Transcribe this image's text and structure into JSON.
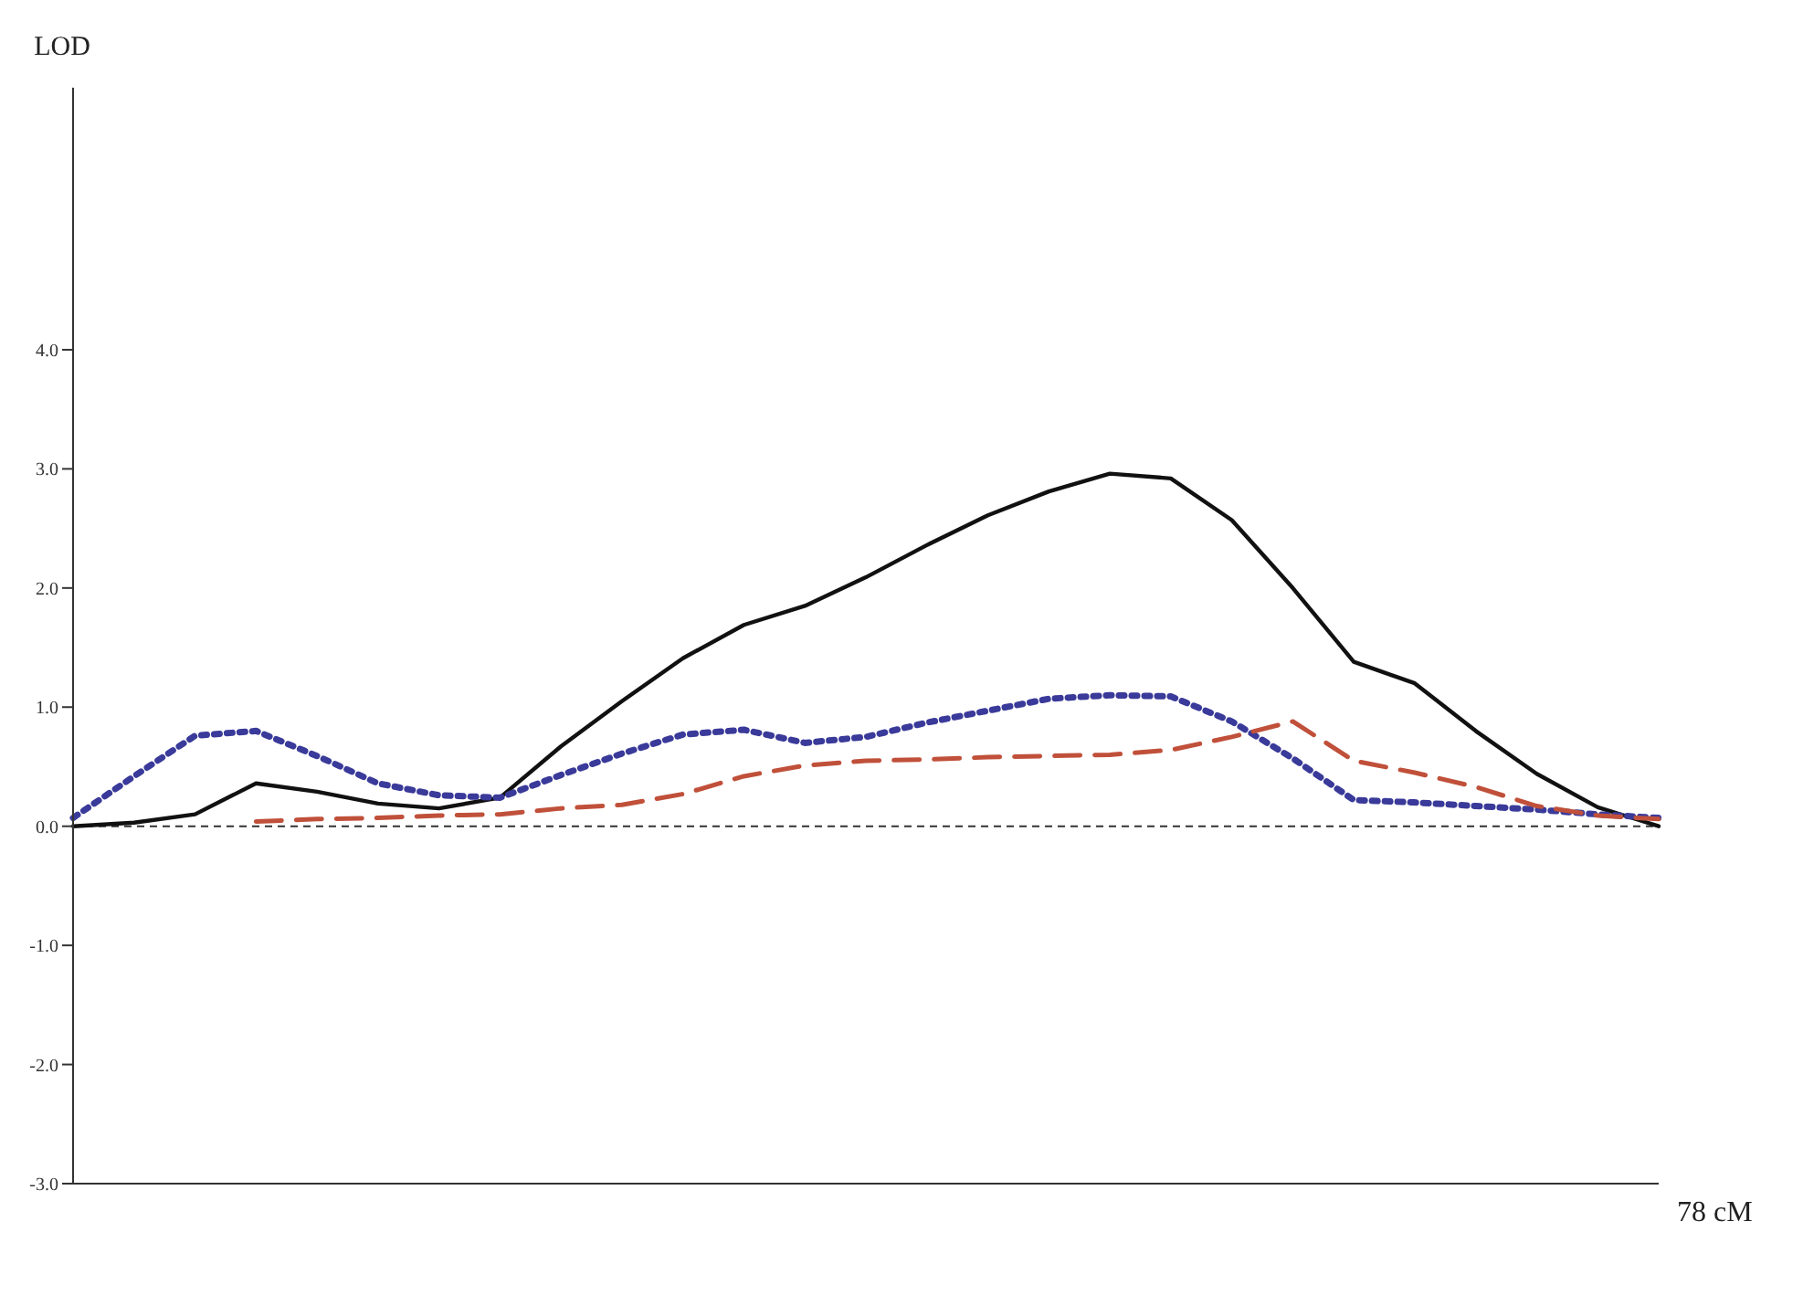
{
  "chart_data": {
    "type": "line",
    "ylabel": "LOD",
    "xlabel": "78 cM",
    "categories": [
      null,
      null,
      null,
      null,
      null,
      null,
      null,
      null,
      null,
      null,
      null,
      null,
      null,
      null,
      null,
      null,
      null,
      null,
      null,
      null,
      null,
      null,
      null,
      null,
      null,
      null,
      null
    ],
    "ylim": [
      -3,
      6.2
    ],
    "yticks": [
      {
        "value": -3,
        "label": "-3.0"
      },
      {
        "value": -2,
        "label": "-2.0"
      },
      {
        "value": -1,
        "label": "-1.0"
      },
      {
        "value": 0,
        "label": "0.0"
      },
      {
        "value": 1,
        "label": "1.0"
      },
      {
        "value": 2,
        "label": "2.0"
      },
      {
        "value": 3,
        "label": "3.0"
      },
      {
        "value": 4,
        "label": "4.0"
      }
    ],
    "tick_labels": "y",
    "grid": false,
    "legend": false,
    "ref_lines": [
      {
        "axis": "y",
        "value": 0,
        "color": "#333333",
        "line_style": "dashed"
      }
    ],
    "series": [
      {
        "color": "#111111",
        "line_style": "solid",
        "values": [
          0,
          0.03,
          0.1,
          0.36,
          0.29,
          0.19,
          0.15,
          0.24,
          0.67,
          1.05,
          1.41,
          1.69,
          1.85,
          2.09,
          2.36,
          2.61,
          2.81,
          2.96,
          2.92,
          2.57,
          2.0,
          1.38,
          1.2,
          0.8,
          0.44,
          0.16,
          0
        ]
      },
      {
        "color": "#3a3a9a",
        "line_style": "dotted",
        "values": [
          0.07,
          0.42,
          0.76,
          0.8,
          0.59,
          0.36,
          0.26,
          0.24,
          0.43,
          0.61,
          0.77,
          0.81,
          0.7,
          0.75,
          0.87,
          0.97,
          1.07,
          1.1,
          1.09,
          0.88,
          0.57,
          0.22,
          0.2,
          0.17,
          0.14,
          0.1,
          0.07
        ]
      },
      {
        "color": "#c0503a",
        "line_style": "dashed",
        "values": [
          null,
          null,
          null,
          0.04,
          0.06,
          0.07,
          0.09,
          0.1,
          0.15,
          0.18,
          0.27,
          0.42,
          0.51,
          0.55,
          0.56,
          0.58,
          0.59,
          0.6,
          0.64,
          0.75,
          0.88,
          0.55,
          0.45,
          0.33,
          0.17,
          0.09,
          0.06
        ]
      }
    ]
  }
}
